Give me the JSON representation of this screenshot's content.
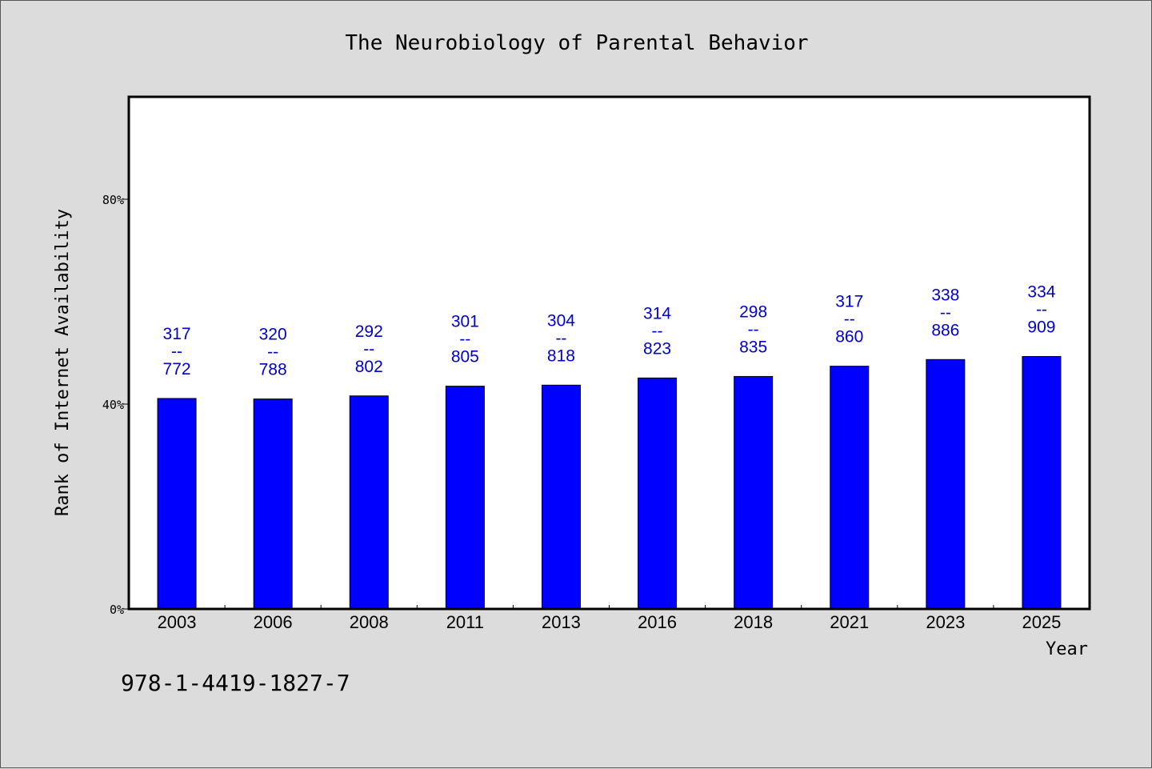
{
  "chart_data": {
    "type": "bar",
    "title": "The Neurobiology of Parental Behavior",
    "xlabel": "Year",
    "ylabel": "Rank of Internet Availability",
    "categories": [
      "2003",
      "2006",
      "2008",
      "2011",
      "2013",
      "2016",
      "2018",
      "2021",
      "2023",
      "2025"
    ],
    "values": [
      41.1,
      41.0,
      41.6,
      43.5,
      43.7,
      45.1,
      45.4,
      47.4,
      48.7,
      49.3
    ],
    "value_unit": "%",
    "bar_labels": [
      {
        "top": "317",
        "sep": "--",
        "bottom": "772"
      },
      {
        "top": "320",
        "sep": "--",
        "bottom": "788"
      },
      {
        "top": "292",
        "sep": "--",
        "bottom": "802"
      },
      {
        "top": "301",
        "sep": "--",
        "bottom": "805"
      },
      {
        "top": "304",
        "sep": "--",
        "bottom": "818"
      },
      {
        "top": "314",
        "sep": "--",
        "bottom": "823"
      },
      {
        "top": "298",
        "sep": "--",
        "bottom": "835"
      },
      {
        "top": "317",
        "sep": "--",
        "bottom": "860"
      },
      {
        "top": "338",
        "sep": "--",
        "bottom": "886"
      },
      {
        "top": "334",
        "sep": "--",
        "bottom": "909"
      }
    ],
    "ylim": [
      0,
      100
    ],
    "yticks": [
      0,
      40,
      80
    ],
    "ytick_labels": [
      "0%",
      "40%",
      "80%"
    ],
    "grid": false,
    "legend": "none",
    "colors": {
      "bar": "#0000ff",
      "label": "#0000cc",
      "background": "#dcdcdc",
      "plot_bg": "#ffffff"
    }
  },
  "footer_code": "978-1-4419-1827-7"
}
